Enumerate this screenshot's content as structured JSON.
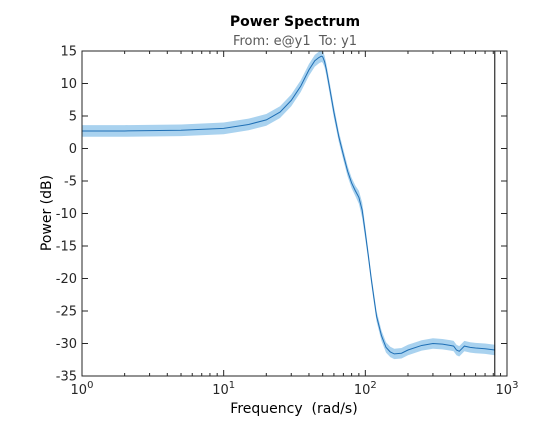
{
  "colors": {
    "background": "#ffffff",
    "axes": "#262626",
    "line": "#1f6fb5",
    "band": "#a9d2ef",
    "nyquist_line": "#000000"
  },
  "chart_data": {
    "type": "line",
    "title": "Power Spectrum",
    "subtitle": "From: e@y1  To: y1",
    "xlabel": "Frequency  (rad/s)",
    "ylabel": "Power (dB)",
    "xscale": "log",
    "xlim": [
      1,
      1000
    ],
    "ylim": [
      -35,
      15
    ],
    "grid": false,
    "nyquist_marker_x": 820,
    "x_ticks": [
      {
        "value": 1,
        "base": "10",
        "exp": "0"
      },
      {
        "value": 10,
        "base": "10",
        "exp": "1"
      },
      {
        "value": 100,
        "base": "10",
        "exp": "2"
      },
      {
        "value": 1000,
        "base": "10",
        "exp": "3"
      }
    ],
    "y_ticks": [
      15,
      10,
      5,
      0,
      -5,
      -10,
      -15,
      -20,
      -25,
      -30,
      -35
    ],
    "series": [
      {
        "x": [
          1,
          2,
          5,
          10,
          15,
          20,
          25,
          30,
          35,
          40,
          44,
          47,
          49,
          50,
          51.5,
          53,
          56,
          60,
          65,
          70,
          75,
          80,
          85,
          90,
          95,
          100,
          105,
          110,
          115,
          120,
          130,
          140,
          150,
          160,
          180,
          200,
          250,
          300,
          350,
          400,
          420,
          440,
          460,
          480,
          500,
          550,
          600,
          700,
          820
        ],
        "y": [
          2.7,
          2.7,
          2.8,
          3.1,
          3.7,
          4.4,
          5.6,
          7.4,
          9.6,
          12.1,
          13.5,
          14.0,
          14.2,
          14.1,
          13.4,
          12.2,
          9.3,
          5.6,
          1.8,
          -1.0,
          -3.5,
          -5.3,
          -6.5,
          -7.5,
          -9.5,
          -13.0,
          -16.5,
          -20.0,
          -23.0,
          -25.8,
          -28.8,
          -30.6,
          -31.3,
          -31.6,
          -31.5,
          -31.0,
          -30.3,
          -30.0,
          -30.1,
          -30.3,
          -30.4,
          -31.0,
          -31.2,
          -30.8,
          -30.4,
          -30.6,
          -30.7,
          -30.8,
          -31.0
        ],
        "band": [
          0.9,
          0.9,
          0.9,
          0.9,
          0.9,
          0.9,
          0.9,
          0.9,
          0.9,
          0.9,
          0.9,
          0.9,
          0.9,
          0.9,
          0.9,
          0.9,
          0.9,
          0.9,
          0.8,
          0.8,
          0.8,
          0.8,
          0.8,
          1.0,
          1.2,
          1.0,
          0.8,
          0.8,
          0.8,
          0.8,
          0.8,
          0.8,
          0.8,
          0.8,
          0.8,
          0.8,
          0.8,
          0.8,
          0.8,
          0.8,
          0.8,
          0.8,
          0.8,
          0.8,
          0.8,
          0.8,
          0.8,
          0.8,
          0.8
        ]
      }
    ]
  }
}
